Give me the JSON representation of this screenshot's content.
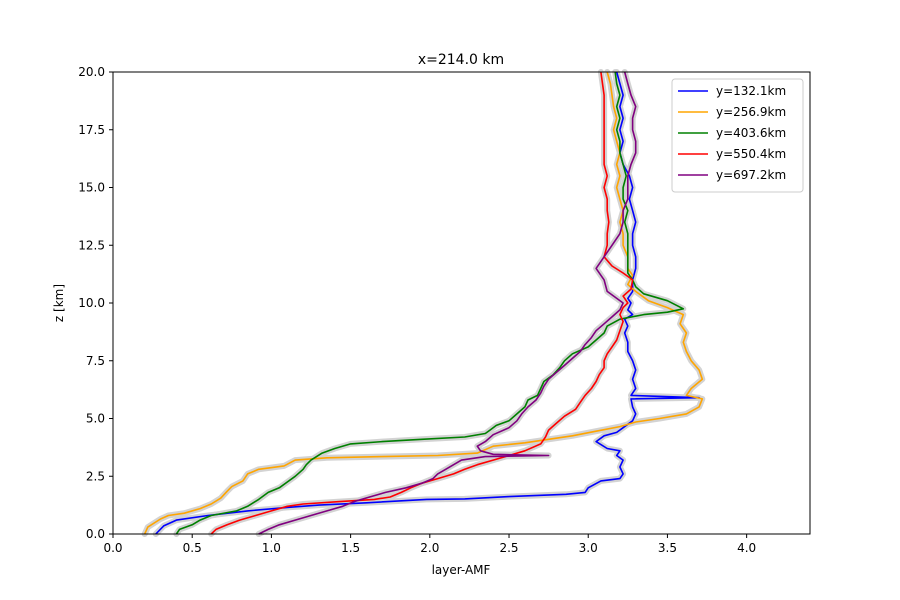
{
  "chart_data": {
    "type": "line",
    "title": "x=214.0 km",
    "xlabel": "layer-AMF",
    "ylabel": "z [km]",
    "xlim": [
      0.0,
      4.4
    ],
    "ylim": [
      0.0,
      20.0
    ],
    "xticks": [
      "0.0",
      "0.5",
      "1.0",
      "1.5",
      "2.0",
      "2.5",
      "3.0",
      "3.5",
      "4.0"
    ],
    "yticks": [
      "0.0",
      "2.5",
      "5.0",
      "7.5",
      "10.0",
      "12.5",
      "15.0",
      "17.5",
      "20.0"
    ],
    "legend_position": "upper right",
    "band_color": "#d3d3d3",
    "series": [
      {
        "name": "y=132.1km",
        "color": "#0000ff",
        "points": [
          [
            0.27,
            0
          ],
          [
            0.32,
            0.35
          ],
          [
            0.4,
            0.6
          ],
          [
            0.6,
            0.8
          ],
          [
            0.85,
            1.0
          ],
          [
            1.1,
            1.15
          ],
          [
            1.3,
            1.25
          ],
          [
            1.6,
            1.35
          ],
          [
            1.98,
            1.5
          ],
          [
            2.22,
            1.52
          ],
          [
            2.5,
            1.62
          ],
          [
            2.86,
            1.72
          ],
          [
            2.98,
            1.8
          ],
          [
            3.0,
            2.0
          ],
          [
            3.08,
            2.3
          ],
          [
            3.2,
            2.4
          ],
          [
            3.22,
            2.6
          ],
          [
            3.2,
            2.9
          ],
          [
            3.22,
            3.2
          ],
          [
            3.18,
            3.4
          ],
          [
            3.2,
            3.6
          ],
          [
            3.12,
            3.7
          ],
          [
            3.05,
            4.0
          ],
          [
            3.1,
            4.25
          ],
          [
            3.18,
            4.4
          ],
          [
            3.22,
            4.6
          ],
          [
            3.28,
            4.9
          ],
          [
            3.3,
            5.2
          ],
          [
            3.28,
            5.5
          ],
          [
            3.27,
            5.85
          ],
          [
            3.7,
            5.9
          ],
          [
            3.27,
            6.0
          ],
          [
            3.3,
            6.3
          ],
          [
            3.28,
            6.7
          ],
          [
            3.3,
            7.1
          ],
          [
            3.28,
            7.5
          ],
          [
            3.25,
            7.9
          ],
          [
            3.25,
            8.3
          ],
          [
            3.23,
            8.7
          ],
          [
            3.25,
            9.0
          ],
          [
            3.23,
            9.3
          ],
          [
            3.28,
            9.5
          ],
          [
            3.25,
            9.7
          ],
          [
            3.27,
            10.0
          ],
          [
            3.25,
            10.2
          ],
          [
            3.28,
            10.5
          ],
          [
            3.28,
            11.0
          ],
          [
            3.3,
            11.5
          ],
          [
            3.3,
            12.0
          ],
          [
            3.28,
            12.5
          ],
          [
            3.28,
            13.0
          ],
          [
            3.3,
            13.5
          ],
          [
            3.28,
            14.0
          ],
          [
            3.26,
            14.5
          ],
          [
            3.28,
            15.0
          ],
          [
            3.26,
            15.5
          ],
          [
            3.22,
            16.0
          ],
          [
            3.2,
            16.5
          ],
          [
            3.22,
            17.0
          ],
          [
            3.2,
            17.5
          ],
          [
            3.22,
            18.0
          ],
          [
            3.2,
            18.5
          ],
          [
            3.22,
            19.0
          ],
          [
            3.2,
            19.5
          ],
          [
            3.18,
            20.0
          ]
        ]
      },
      {
        "name": "y=256.9km",
        "color": "#ffa500",
        "points": [
          [
            0.2,
            0
          ],
          [
            0.22,
            0.3
          ],
          [
            0.3,
            0.65
          ],
          [
            0.35,
            0.8
          ],
          [
            0.45,
            0.9
          ],
          [
            0.55,
            1.1
          ],
          [
            0.62,
            1.3
          ],
          [
            0.68,
            1.55
          ],
          [
            0.72,
            1.85
          ],
          [
            0.75,
            2.05
          ],
          [
            0.82,
            2.3
          ],
          [
            0.85,
            2.6
          ],
          [
            0.92,
            2.8
          ],
          [
            1.08,
            2.95
          ],
          [
            1.15,
            3.2
          ],
          [
            1.35,
            3.3
          ],
          [
            1.7,
            3.35
          ],
          [
            2.05,
            3.4
          ],
          [
            2.3,
            3.5
          ],
          [
            2.4,
            3.8
          ],
          [
            2.6,
            3.95
          ],
          [
            2.75,
            4.1
          ],
          [
            2.9,
            4.25
          ],
          [
            3.05,
            4.45
          ],
          [
            3.2,
            4.65
          ],
          [
            3.3,
            4.85
          ],
          [
            3.45,
            5.0
          ],
          [
            3.62,
            5.2
          ],
          [
            3.7,
            5.5
          ],
          [
            3.72,
            5.85
          ],
          [
            3.62,
            6.0
          ],
          [
            3.65,
            6.3
          ],
          [
            3.72,
            6.7
          ],
          [
            3.7,
            7.1
          ],
          [
            3.65,
            7.5
          ],
          [
            3.62,
            7.9
          ],
          [
            3.6,
            8.3
          ],
          [
            3.62,
            8.7
          ],
          [
            3.58,
            9.1
          ],
          [
            3.6,
            9.5
          ],
          [
            3.5,
            9.8
          ],
          [
            3.38,
            10.1
          ],
          [
            3.3,
            10.5
          ],
          [
            3.25,
            10.8
          ],
          [
            3.28,
            11.2
          ],
          [
            3.25,
            11.5
          ],
          [
            3.25,
            12.0
          ],
          [
            3.22,
            12.5
          ],
          [
            3.22,
            13.0
          ],
          [
            3.2,
            13.5
          ],
          [
            3.22,
            14.0
          ],
          [
            3.2,
            14.5
          ],
          [
            3.18,
            15.0
          ],
          [
            3.2,
            15.5
          ],
          [
            3.18,
            16.0
          ],
          [
            3.2,
            16.5
          ],
          [
            3.18,
            17.0
          ],
          [
            3.16,
            17.5
          ],
          [
            3.18,
            18.0
          ],
          [
            3.16,
            18.5
          ],
          [
            3.15,
            19.0
          ],
          [
            3.14,
            19.5
          ],
          [
            3.12,
            20.0
          ]
        ]
      },
      {
        "name": "y=403.6km",
        "color": "#008000",
        "points": [
          [
            0.4,
            0
          ],
          [
            0.42,
            0.2
          ],
          [
            0.5,
            0.4
          ],
          [
            0.55,
            0.6
          ],
          [
            0.62,
            0.8
          ],
          [
            0.78,
            1.0
          ],
          [
            0.85,
            1.2
          ],
          [
            0.92,
            1.5
          ],
          [
            0.98,
            1.8
          ],
          [
            1.05,
            2.0
          ],
          [
            1.1,
            2.25
          ],
          [
            1.15,
            2.5
          ],
          [
            1.2,
            2.8
          ],
          [
            1.22,
            3.0
          ],
          [
            1.25,
            3.2
          ],
          [
            1.32,
            3.5
          ],
          [
            1.4,
            3.7
          ],
          [
            1.5,
            3.9
          ],
          [
            1.7,
            4.0
          ],
          [
            1.95,
            4.1
          ],
          [
            2.22,
            4.2
          ],
          [
            2.35,
            4.35
          ],
          [
            2.38,
            4.5
          ],
          [
            2.42,
            4.7
          ],
          [
            2.5,
            4.9
          ],
          [
            2.55,
            5.2
          ],
          [
            2.6,
            5.5
          ],
          [
            2.62,
            5.8
          ],
          [
            2.68,
            6.0
          ],
          [
            2.7,
            6.3
          ],
          [
            2.72,
            6.6
          ],
          [
            2.78,
            6.9
          ],
          [
            2.82,
            7.2
          ],
          [
            2.85,
            7.5
          ],
          [
            2.9,
            7.8
          ],
          [
            3.0,
            8.1
          ],
          [
            3.05,
            8.4
          ],
          [
            3.1,
            8.7
          ],
          [
            3.12,
            9.0
          ],
          [
            3.2,
            9.3
          ],
          [
            3.35,
            9.5
          ],
          [
            3.5,
            9.6
          ],
          [
            3.6,
            9.75
          ],
          [
            3.5,
            10.1
          ],
          [
            3.35,
            10.4
          ],
          [
            3.3,
            10.7
          ],
          [
            3.28,
            11.0
          ],
          [
            3.25,
            11.3
          ],
          [
            3.25,
            11.8
          ],
          [
            3.25,
            12.5
          ],
          [
            3.25,
            13.0
          ],
          [
            3.23,
            13.5
          ],
          [
            3.25,
            14.0
          ],
          [
            3.22,
            14.5
          ],
          [
            3.22,
            15.0
          ],
          [
            3.24,
            15.5
          ],
          [
            3.22,
            16.0
          ],
          [
            3.2,
            16.5
          ],
          [
            3.2,
            17.0
          ],
          [
            3.18,
            17.5
          ],
          [
            3.2,
            18.0
          ],
          [
            3.18,
            18.5
          ],
          [
            3.2,
            19.0
          ],
          [
            3.18,
            19.5
          ],
          [
            3.17,
            20.0
          ]
        ]
      },
      {
        "name": "y=550.4km",
        "color": "#ff0000",
        "points": [
          [
            0.62,
            0
          ],
          [
            0.65,
            0.2
          ],
          [
            0.72,
            0.4
          ],
          [
            0.8,
            0.6
          ],
          [
            0.9,
            0.8
          ],
          [
            1.0,
            1.0
          ],
          [
            1.1,
            1.2
          ],
          [
            1.2,
            1.3
          ],
          [
            1.42,
            1.4
          ],
          [
            1.65,
            1.5
          ],
          [
            1.75,
            1.6
          ],
          [
            1.82,
            1.8
          ],
          [
            1.88,
            2.0
          ],
          [
            1.95,
            2.2
          ],
          [
            2.05,
            2.4
          ],
          [
            2.15,
            2.6
          ],
          [
            2.22,
            2.8
          ],
          [
            2.3,
            3.0
          ],
          [
            2.4,
            3.2
          ],
          [
            2.5,
            3.4
          ],
          [
            2.6,
            3.6
          ],
          [
            2.7,
            3.9
          ],
          [
            2.73,
            4.2
          ],
          [
            2.75,
            4.5
          ],
          [
            2.8,
            4.8
          ],
          [
            2.85,
            5.1
          ],
          [
            2.92,
            5.4
          ],
          [
            2.95,
            5.7
          ],
          [
            2.98,
            6.0
          ],
          [
            3.02,
            6.3
          ],
          [
            3.05,
            6.6
          ],
          [
            3.07,
            6.9
          ],
          [
            3.1,
            7.2
          ],
          [
            3.1,
            7.5
          ],
          [
            3.12,
            7.8
          ],
          [
            3.15,
            8.1
          ],
          [
            3.18,
            8.4
          ],
          [
            3.2,
            8.8
          ],
          [
            3.22,
            9.2
          ],
          [
            3.2,
            9.5
          ],
          [
            3.22,
            9.8
          ],
          [
            3.25,
            10.0
          ],
          [
            3.22,
            10.3
          ],
          [
            3.27,
            10.6
          ],
          [
            3.28,
            11.0
          ],
          [
            3.22,
            11.3
          ],
          [
            3.15,
            11.6
          ],
          [
            3.1,
            12.0
          ],
          [
            3.12,
            12.5
          ],
          [
            3.12,
            13.0
          ],
          [
            3.13,
            13.5
          ],
          [
            3.12,
            14.0
          ],
          [
            3.12,
            14.5
          ],
          [
            3.1,
            15.0
          ],
          [
            3.12,
            15.5
          ],
          [
            3.1,
            16.0
          ],
          [
            3.1,
            16.5
          ],
          [
            3.1,
            17.0
          ],
          [
            3.1,
            17.5
          ],
          [
            3.1,
            18.0
          ],
          [
            3.1,
            18.5
          ],
          [
            3.1,
            19.0
          ],
          [
            3.09,
            19.5
          ],
          [
            3.08,
            20.0
          ]
        ]
      },
      {
        "name": "y=697.2km",
        "color": "#800080",
        "points": [
          [
            0.92,
            0
          ],
          [
            0.98,
            0.2
          ],
          [
            1.05,
            0.4
          ],
          [
            1.15,
            0.6
          ],
          [
            1.25,
            0.8
          ],
          [
            1.35,
            1.0
          ],
          [
            1.45,
            1.2
          ],
          [
            1.52,
            1.4
          ],
          [
            1.62,
            1.6
          ],
          [
            1.72,
            1.8
          ],
          [
            1.85,
            2.0
          ],
          [
            1.95,
            2.2
          ],
          [
            2.02,
            2.4
          ],
          [
            2.05,
            2.6
          ],
          [
            2.1,
            2.8
          ],
          [
            2.15,
            3.0
          ],
          [
            2.2,
            3.2
          ],
          [
            2.35,
            3.35
          ],
          [
            2.75,
            3.4
          ],
          [
            2.4,
            3.45
          ],
          [
            2.32,
            3.6
          ],
          [
            2.3,
            3.8
          ],
          [
            2.35,
            4.0
          ],
          [
            2.4,
            4.3
          ],
          [
            2.5,
            4.6
          ],
          [
            2.55,
            4.9
          ],
          [
            2.58,
            5.2
          ],
          [
            2.62,
            5.5
          ],
          [
            2.67,
            5.8
          ],
          [
            2.7,
            6.1
          ],
          [
            2.72,
            6.4
          ],
          [
            2.75,
            6.7
          ],
          [
            2.8,
            7.0
          ],
          [
            2.85,
            7.3
          ],
          [
            2.9,
            7.6
          ],
          [
            2.95,
            7.9
          ],
          [
            2.98,
            8.2
          ],
          [
            3.02,
            8.5
          ],
          [
            3.05,
            8.8
          ],
          [
            3.1,
            9.1
          ],
          [
            3.15,
            9.4
          ],
          [
            3.2,
            9.7
          ],
          [
            3.22,
            10.0
          ],
          [
            3.12,
            10.5
          ],
          [
            3.1,
            11.0
          ],
          [
            3.05,
            11.5
          ],
          [
            3.1,
            12.0
          ],
          [
            3.15,
            12.5
          ],
          [
            3.2,
            13.0
          ],
          [
            3.22,
            13.5
          ],
          [
            3.22,
            14.0
          ],
          [
            3.25,
            14.5
          ],
          [
            3.25,
            15.0
          ],
          [
            3.25,
            15.5
          ],
          [
            3.27,
            16.0
          ],
          [
            3.3,
            16.5
          ],
          [
            3.3,
            17.0
          ],
          [
            3.28,
            17.5
          ],
          [
            3.28,
            18.0
          ],
          [
            3.3,
            18.5
          ],
          [
            3.27,
            19.0
          ],
          [
            3.25,
            19.5
          ],
          [
            3.23,
            20.0
          ]
        ]
      }
    ]
  }
}
